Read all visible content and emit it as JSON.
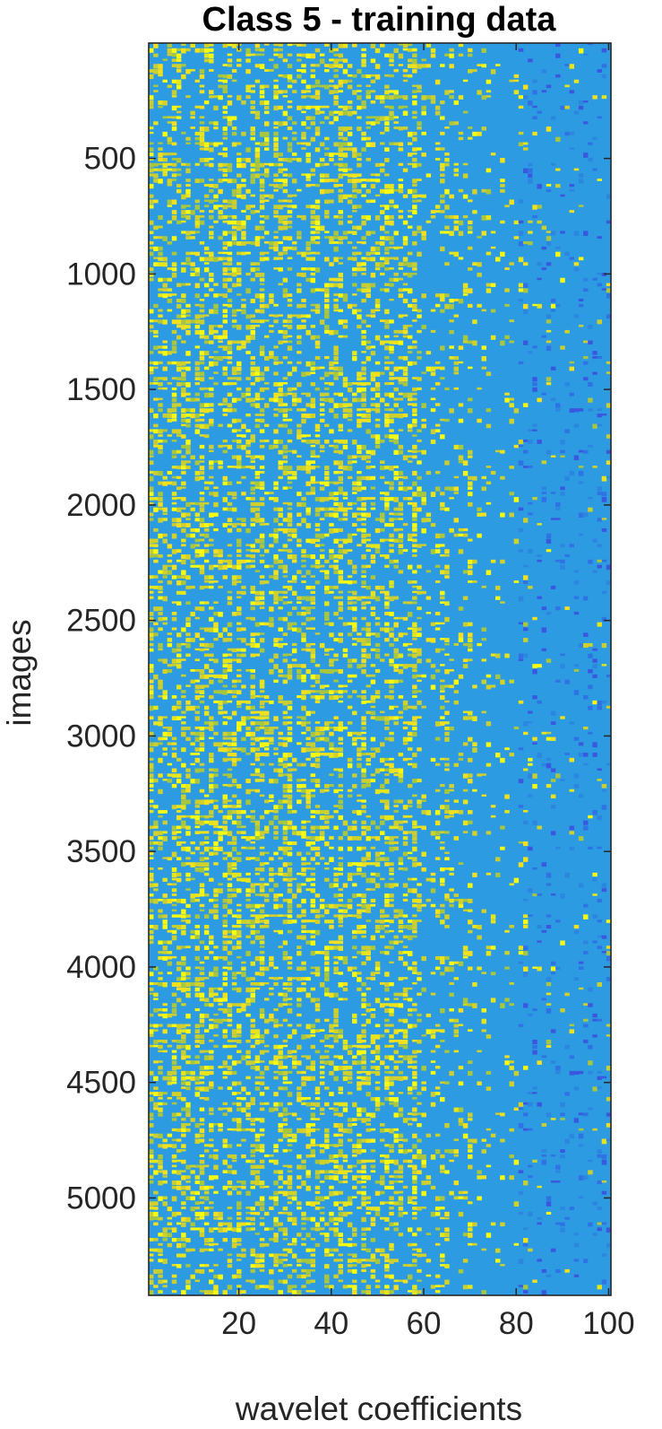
{
  "chart_data": {
    "type": "heatmap",
    "title": "Class 5 - training data",
    "xlabel": "wavelet coefficients",
    "ylabel": "images",
    "xlim": [
      0.5,
      100.5
    ],
    "ylim": [
      0.5,
      5421.5
    ],
    "y_direction": "reversed",
    "x_ticks": [
      20,
      40,
      60,
      80,
      100
    ],
    "x_tick_labels": [
      "20",
      "40",
      "60",
      "80",
      "100"
    ],
    "y_ticks": [
      500,
      1000,
      1500,
      2000,
      2500,
      3000,
      3500,
      4000,
      4500,
      5000
    ],
    "y_tick_labels": [
      "500",
      "1000",
      "1500",
      "2000",
      "2500",
      "3000",
      "3500",
      "4000",
      "4500",
      "5000"
    ],
    "n_columns": 100,
    "n_rows": 5421,
    "colormap": "parula",
    "colors": {
      "high": "#f9fb0e",
      "mid": "#2d9be1",
      "low": "#3a3fdc"
    },
    "description_note": "",
    "grid": false,
    "legend": "none"
  }
}
